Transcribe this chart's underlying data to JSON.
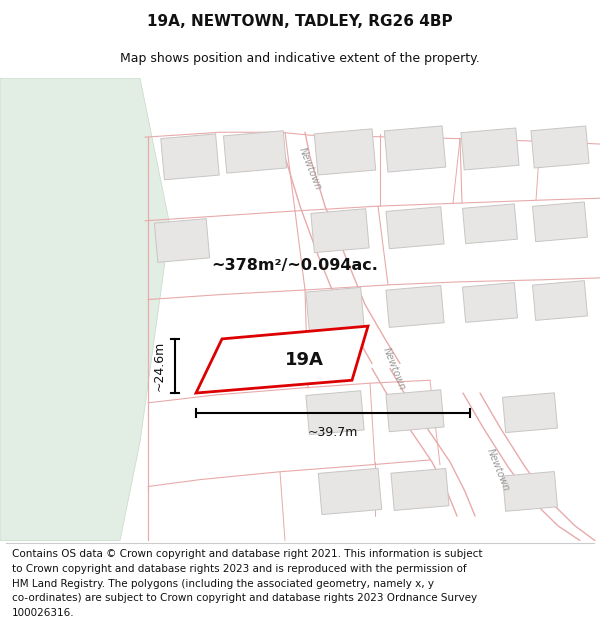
{
  "title": "19A, NEWTOWN, TADLEY, RG26 4BP",
  "subtitle": "Map shows position and indicative extent of the property.",
  "area_label": "~378m²/~0.094ac.",
  "width_label": "~39.7m",
  "height_label": "~24.6m",
  "plot_label": "19A",
  "footer_lines": [
    "Contains OS data © Crown copyright and database right 2021. This information is subject",
    "to Crown copyright and database rights 2023 and is reproduced with the permission of",
    "HM Land Registry. The polygons (including the associated geometry, namely x, y",
    "co-ordinates) are subject to Crown copyright and database rights 2023 Ordnance Survey",
    "100026316."
  ],
  "map_bg": "#f9f8f7",
  "road_line_color": "#e8aaaa",
  "building_face_color": "#e8e6e4",
  "building_edge_color": "#c8c6c4",
  "highlight_color": "#dd0000",
  "green_area_color": "#e2ede4",
  "green_edge_color": "#c8d8ca",
  "title_fontsize": 11,
  "subtitle_fontsize": 9,
  "footer_fontsize": 7.5,
  "road_lw": 0.9,
  "newtown_label_color": "#999999"
}
